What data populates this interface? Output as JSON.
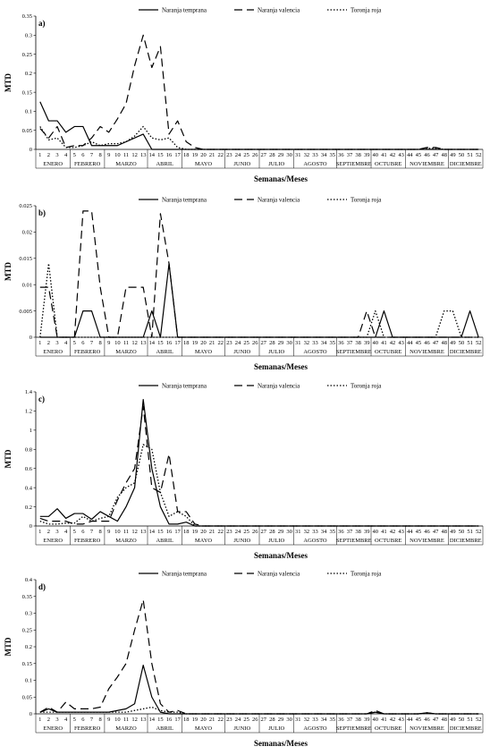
{
  "chart_data": [
    {
      "type": "line",
      "panel_label": "a)",
      "ylabel": "MTD",
      "xlabel": "Semanas/Meses",
      "ylim": [
        0,
        0.35
      ],
      "yticks": [
        "0",
        "0.05",
        "0.1",
        "0.15",
        "0.2",
        "0.25",
        "0.3",
        "0.35"
      ],
      "x": [
        1,
        2,
        3,
        4,
        5,
        6,
        7,
        8,
        9,
        10,
        11,
        12,
        13,
        14,
        15,
        16,
        17,
        18,
        19,
        20,
        21,
        22,
        23,
        24,
        25,
        26,
        27,
        28,
        29,
        30,
        31,
        32,
        33,
        34,
        35,
        36,
        37,
        38,
        39,
        40,
        41,
        42,
        43,
        44,
        45,
        46,
        47,
        48,
        49,
        50,
        51,
        52
      ],
      "series": [
        {
          "name": "Naranja temprana",
          "style": "solid",
          "values": [
            0.125,
            0.075,
            0.075,
            0.045,
            0.06,
            0.06,
            0.01,
            0.01,
            0.01,
            0.01,
            0.02,
            0.03,
            0.04,
            0,
            0,
            0,
            0,
            0,
            0,
            0,
            0,
            0,
            0,
            0,
            0,
            0,
            0,
            0,
            0,
            0,
            0,
            0,
            0,
            0,
            0,
            0,
            0,
            0,
            0,
            0,
            0,
            0,
            0,
            0,
            0,
            0,
            0,
            0,
            0,
            0,
            0,
            0
          ]
        },
        {
          "name": "Naranja valencia",
          "style": "dashed",
          "values": [
            0.055,
            0.03,
            0.06,
            0.005,
            0.01,
            0.01,
            0.03,
            0.06,
            0.045,
            0.08,
            0.12,
            0.22,
            0.3,
            0.215,
            0.27,
            0.04,
            0.075,
            0.02,
            0.005,
            0,
            0,
            0,
            0,
            0,
            0,
            0,
            0,
            0,
            0,
            0,
            0,
            0,
            0,
            0,
            0,
            0,
            0,
            0,
            0,
            0,
            0,
            0,
            0,
            0,
            0,
            0.005,
            0.005,
            0,
            0,
            0,
            0,
            0
          ]
        },
        {
          "name": "Toronja roja",
          "style": "dotted",
          "values": [
            0.06,
            0.025,
            0.03,
            0.005,
            0.005,
            0.01,
            0.02,
            0.01,
            0.015,
            0.015,
            0.02,
            0.035,
            0.06,
            0.03,
            0.025,
            0.03,
            0.005,
            0,
            0,
            0,
            0,
            0,
            0,
            0,
            0,
            0,
            0,
            0,
            0,
            0,
            0,
            0,
            0,
            0,
            0,
            0,
            0,
            0,
            0,
            0,
            0,
            0,
            0,
            0,
            0,
            0.003,
            0.003,
            0,
            0,
            0,
            0,
            0
          ]
        }
      ]
    },
    {
      "type": "line",
      "panel_label": "b)",
      "ylabel": "MTD",
      "xlabel": "Semanas/Meses",
      "ylim": [
        0,
        0.025
      ],
      "yticks": [
        "0",
        "0.005",
        "0.01",
        "0.015",
        "0.02",
        "0.025"
      ],
      "x": [
        1,
        2,
        3,
        4,
        5,
        6,
        7,
        8,
        9,
        10,
        11,
        12,
        13,
        14,
        15,
        16,
        17,
        18,
        19,
        20,
        21,
        22,
        23,
        24,
        25,
        26,
        27,
        28,
        29,
        30,
        31,
        32,
        33,
        34,
        35,
        36,
        37,
        38,
        39,
        40,
        41,
        42,
        43,
        44,
        45,
        46,
        47,
        48,
        49,
        50,
        51,
        52
      ],
      "series": [
        {
          "name": "Naranja temprana",
          "style": "solid",
          "values": [
            0,
            0,
            0,
            0,
            0,
            0.005,
            0.005,
            0,
            0,
            0,
            0,
            0,
            0,
            0.005,
            0,
            0.014,
            0,
            0,
            0,
            0,
            0,
            0,
            0,
            0,
            0,
            0,
            0,
            0,
            0,
            0,
            0,
            0,
            0,
            0,
            0,
            0,
            0,
            0,
            0,
            0,
            0.005,
            0,
            0,
            0,
            0,
            0,
            0,
            0,
            0,
            0,
            0.005,
            0
          ]
        },
        {
          "name": "Naranja valencia",
          "style": "dashed",
          "values": [
            0.0095,
            0.0095,
            0,
            0,
            0,
            0.024,
            0.024,
            0.0095,
            0,
            0,
            0.0095,
            0.0095,
            0.0095,
            0,
            0.0235,
            0.014,
            0,
            0,
            0,
            0,
            0,
            0,
            0,
            0,
            0,
            0,
            0,
            0,
            0,
            0,
            0,
            0,
            0,
            0,
            0,
            0,
            0,
            0,
            0.005,
            0,
            0,
            0,
            0,
            0,
            0,
            0,
            0,
            0,
            0,
            0,
            0,
            0
          ]
        },
        {
          "name": "Toronja roja",
          "style": "dotted",
          "values": [
            0,
            0.014,
            0,
            0,
            0,
            0,
            0,
            0,
            0,
            0,
            0,
            0,
            0,
            0,
            0,
            0,
            0,
            0,
            0,
            0,
            0,
            0,
            0,
            0,
            0,
            0,
            0,
            0,
            0,
            0,
            0,
            0,
            0,
            0,
            0,
            0,
            0,
            0,
            0,
            0.005,
            0,
            0,
            0,
            0,
            0,
            0,
            0,
            0.005,
            0.005,
            0,
            0,
            0
          ]
        }
      ]
    },
    {
      "type": "line",
      "panel_label": "c)",
      "ylabel": "MTD",
      "xlabel": "Semanas/Meses",
      "ylim": [
        0,
        1.4
      ],
      "yticks": [
        "0",
        "0.2",
        "0.4",
        "0.6",
        "0.8",
        "1",
        "1.2",
        "1.4"
      ],
      "x": [
        1,
        2,
        3,
        4,
        5,
        6,
        7,
        8,
        9,
        10,
        11,
        12,
        13,
        14,
        15,
        16,
        17,
        18,
        19,
        20,
        21,
        22,
        23,
        24,
        25,
        26,
        27,
        28,
        29,
        30,
        31,
        32,
        33,
        34,
        35,
        36,
        37,
        38,
        39,
        40,
        41,
        42,
        43,
        44,
        45,
        46,
        47,
        48,
        49,
        50,
        51,
        52
      ],
      "series": [
        {
          "name": "Naranja temprana",
          "style": "solid",
          "values": [
            0.1,
            0.1,
            0.18,
            0.08,
            0.13,
            0.13,
            0.07,
            0.15,
            0.1,
            0.05,
            0.2,
            0.4,
            1.32,
            0.6,
            0.2,
            0.02,
            0.02,
            0.04,
            0,
            0,
            0,
            0,
            0,
            0,
            0,
            0,
            0,
            0,
            0,
            0,
            0,
            0,
            0,
            0,
            0,
            0,
            0,
            0,
            0,
            0,
            0,
            0,
            0,
            0,
            0,
            0,
            0,
            0,
            0,
            0,
            0,
            0
          ]
        },
        {
          "name": "Naranja valencia",
          "style": "dashed",
          "values": [
            0.08,
            0.05,
            0.05,
            0.05,
            0.02,
            0.02,
            0.05,
            0.05,
            0.05,
            0.27,
            0.45,
            0.6,
            1.25,
            0.4,
            0.35,
            0.75,
            0.15,
            0.15,
            0.02,
            0,
            0,
            0,
            0,
            0,
            0,
            0,
            0,
            0,
            0,
            0,
            0,
            0,
            0,
            0,
            0,
            0,
            0,
            0,
            0,
            0,
            0,
            0,
            0,
            0,
            0,
            0,
            0,
            0,
            0,
            0,
            0,
            0
          ]
        },
        {
          "name": "Toronja roja",
          "style": "dotted",
          "values": [
            0.05,
            0.02,
            0.02,
            0.03,
            0.03,
            0.1,
            0.05,
            0.08,
            0.1,
            0.3,
            0.4,
            0.45,
            0.85,
            0.8,
            0.35,
            0.1,
            0.15,
            0.1,
            0,
            0,
            0,
            0,
            0,
            0,
            0,
            0,
            0,
            0,
            0,
            0,
            0,
            0,
            0,
            0,
            0,
            0,
            0,
            0,
            0,
            0,
            0,
            0,
            0,
            0,
            0,
            0,
            0,
            0,
            0,
            0,
            0,
            0
          ]
        }
      ]
    },
    {
      "type": "line",
      "panel_label": "d)",
      "ylabel": "MTD",
      "xlabel": "Semanas/Meses",
      "ylim": [
        0,
        0.4
      ],
      "yticks": [
        "0",
        "0.05",
        "0.1",
        "0.15",
        "0.2",
        "0.25",
        "0.3",
        "0.35",
        "0.4"
      ],
      "x": [
        1,
        2,
        3,
        4,
        5,
        6,
        7,
        8,
        9,
        10,
        11,
        12,
        13,
        14,
        15,
        16,
        17,
        18,
        19,
        20,
        21,
        22,
        23,
        24,
        25,
        26,
        27,
        28,
        29,
        30,
        31,
        32,
        33,
        34,
        35,
        36,
        37,
        38,
        39,
        40,
        41,
        42,
        43,
        44,
        45,
        46,
        47,
        48,
        49,
        50,
        51,
        52
      ],
      "series": [
        {
          "name": "Naranja temprana",
          "style": "solid",
          "values": [
            0.005,
            0.015,
            0.005,
            0.005,
            0.005,
            0.005,
            0.005,
            0.005,
            0.005,
            0.01,
            0.015,
            0.03,
            0.145,
            0.05,
            0.005,
            0,
            0,
            0,
            0,
            0,
            0,
            0,
            0,
            0,
            0,
            0,
            0,
            0,
            0,
            0,
            0,
            0,
            0,
            0,
            0,
            0,
            0,
            0,
            0,
            0.005,
            0,
            0,
            0,
            0,
            0,
            0.003,
            0,
            0,
            0,
            0,
            0,
            0
          ]
        },
        {
          "name": "Naranja valencia",
          "style": "dashed",
          "values": [
            0.005,
            0.02,
            0.005,
            0.035,
            0.015,
            0.015,
            0.015,
            0.02,
            0.075,
            0.11,
            0.15,
            0.25,
            0.34,
            0.15,
            0.03,
            0.005,
            0.01,
            0,
            0,
            0,
            0,
            0,
            0,
            0,
            0,
            0,
            0,
            0,
            0,
            0,
            0,
            0,
            0,
            0,
            0,
            0,
            0,
            0,
            0,
            0.01,
            0,
            0,
            0,
            0,
            0,
            0.003,
            0,
            0,
            0,
            0,
            0,
            0
          ]
        },
        {
          "name": "Toronja roja",
          "style": "dotted",
          "values": [
            0.005,
            0.005,
            0.005,
            0.005,
            0.005,
            0.005,
            0.005,
            0.005,
            0.005,
            0.005,
            0.005,
            0.01,
            0.015,
            0.02,
            0.01,
            0.005,
            0.005,
            0,
            0,
            0,
            0,
            0,
            0,
            0,
            0,
            0,
            0,
            0,
            0,
            0,
            0,
            0,
            0,
            0,
            0,
            0,
            0,
            0,
            0,
            0.005,
            0,
            0,
            0,
            0,
            0,
            0.002,
            0,
            0,
            0,
            0,
            0,
            0
          ]
        }
      ]
    }
  ],
  "months": [
    {
      "label": "ENERO",
      "from": 1,
      "to": 4
    },
    {
      "label": "FEBRERO",
      "from": 5,
      "to": 8
    },
    {
      "label": "MARZO",
      "from": 9,
      "to": 13
    },
    {
      "label": "ABRIL",
      "from": 14,
      "to": 17
    },
    {
      "label": "MAYO",
      "from": 18,
      "to": 22
    },
    {
      "label": "JUNIO",
      "from": 23,
      "to": 26
    },
    {
      "label": "JULIO",
      "from": 27,
      "to": 30
    },
    {
      "label": "AGOSTO",
      "from": 31,
      "to": 35
    },
    {
      "label": "SEPTIEMBRE",
      "from": 36,
      "to": 39
    },
    {
      "label": "OCTUBRE",
      "from": 40,
      "to": 43
    },
    {
      "label": "NOVIEMBRE",
      "from": 44,
      "to": 48
    },
    {
      "label": "DICIEMBRE",
      "from": 49,
      "to": 52
    }
  ]
}
